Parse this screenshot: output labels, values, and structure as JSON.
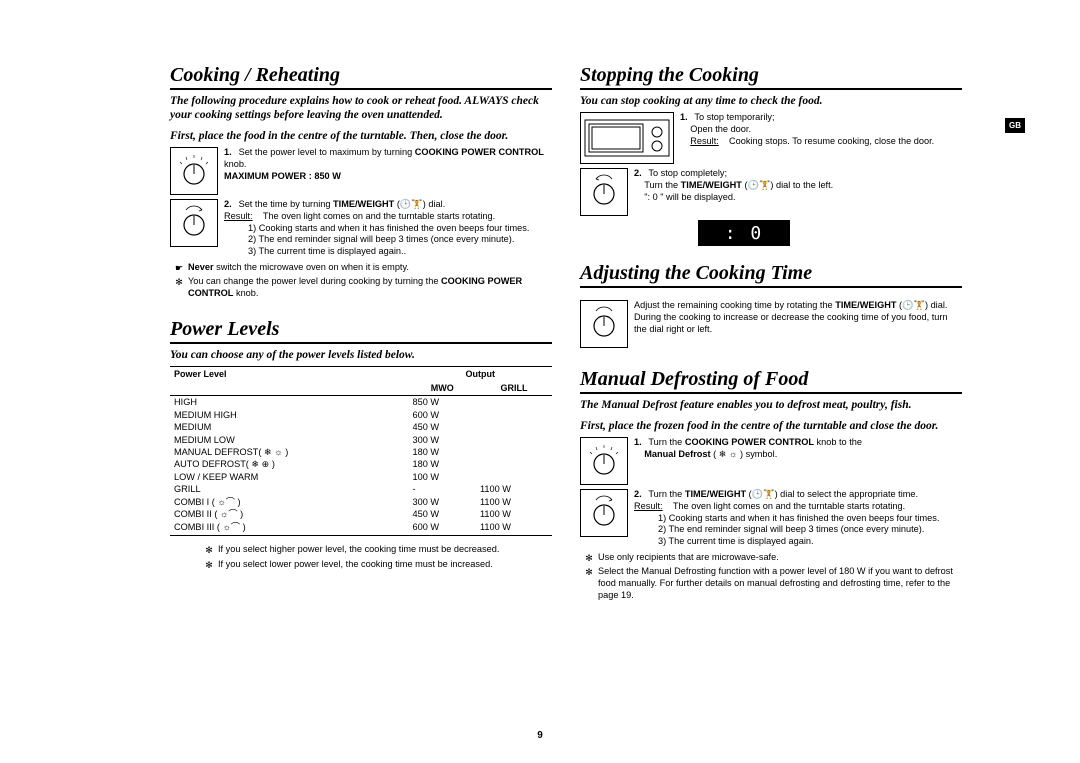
{
  "lang_tag": "GB",
  "page_number": "9",
  "left": {
    "s1": {
      "heading": "Cooking / Reheating",
      "intro1": "The following procedure explains how to cook or reheat food. ALWAYS check your cooking settings before leaving the oven unattended.",
      "intro2": "First, place the food in the centre of the turntable. Then, close the door.",
      "step1_num": "1.",
      "step1a": "Set the power level to maximum by turning ",
      "step1b": "COOKING POWER CONTROL",
      "step1c": " knob.",
      "step1d": "MAXIMUM POWER : 850 W",
      "step2_num": "2.",
      "step2a": "Set the time by turning ",
      "step2b": "TIME/WEIGHT",
      "step2c": " (🕒🏋) dial.",
      "step2_res_label": "Result:",
      "step2_res1": "The oven light comes on and the turntable starts rotating.",
      "step2_r1": "1) Cooking starts and when it has finished the oven beeps four times.",
      "step2_r2": "2) The end reminder signal will beep 3 times (once every minute).",
      "step2_r3": "3) The current time is displayed again..",
      "note1a": "Never",
      "note1b": " switch the microwave oven on when it is empty.",
      "note2a": "You can change the power level during cooking by turning the ",
      "note2b": "COOKING POWER CONTROL",
      "note2c": " knob."
    },
    "s2": {
      "heading": "Power Levels",
      "intro": "You can choose any of the power levels listed below.",
      "th_level": "Power Level",
      "th_output": "Output",
      "th_mwo": "MWO",
      "th_grill": "GRILL",
      "rows": [
        {
          "l": "HIGH",
          "m": "850 W",
          "g": ""
        },
        {
          "l": "MEDIUM HIGH",
          "m": "600 W",
          "g": ""
        },
        {
          "l": "MEDIUM",
          "m": "450 W",
          "g": ""
        },
        {
          "l": "MEDIUM LOW",
          "m": "300 W",
          "g": ""
        },
        {
          "l": "MANUAL DEFROST( ❄ ☼ )",
          "m": "180 W",
          "g": ""
        },
        {
          "l": "AUTO DEFROST( ❄ ⊕ )",
          "m": "180 W",
          "g": ""
        },
        {
          "l": "LOW / KEEP WARM",
          "m": "100 W",
          "g": ""
        },
        {
          "l": "GRILL",
          "m": "-",
          "g": "1100 W"
        },
        {
          "l": "COMBI I  ( ☼⌒ )",
          "m": "300 W",
          "g": "1100 W"
        },
        {
          "l": "COMBI II  ( ☼⌒ )",
          "m": "450 W",
          "g": "1100 W"
        },
        {
          "l": "COMBI III ( ☼⌒ )",
          "m": "600 W",
          "g": "1100 W"
        }
      ],
      "note1": "If you select higher power level, the cooking time must be decreased.",
      "note2": "If you select lower power level, the cooking time must be increased."
    }
  },
  "right": {
    "s1": {
      "heading": "Stopping the Cooking",
      "intro": "You can stop cooking at any time to check the food.",
      "step1_num": "1.",
      "step1a": "To stop temporarily;",
      "step1b": "Open the door.",
      "step1_res_label": "Result:",
      "step1_res": "Cooking stops. To resume cooking, close the door.",
      "step2_num": "2.",
      "step2a": "To stop completely;",
      "step2b": "Turn the ",
      "step2c": "TIME/WEIGHT",
      "step2d": " (🕒🏋) dial to the left.",
      "step2e": "\": 0 \" will be displayed.",
      "display": ":  0"
    },
    "s2": {
      "heading": "Adjusting the Cooking Time",
      "p1a": "Adjust the remaining cooking time by rotating the ",
      "p1b": "TIME/WEIGHT",
      "p1c": " (🕒🏋) dial.",
      "p2": "During the cooking to increase or decrease the cooking time of you food, turn the dial right or left."
    },
    "s3": {
      "heading": "Manual Defrosting of Food",
      "intro1": "The Manual Defrost feature enables you to defrost meat, poultry, fish.",
      "intro2": "First, place the frozen food in the centre of the turntable and close the door.",
      "step1_num": "1.",
      "step1a": "Turn the ",
      "step1b": "COOKING POWER CONTROL",
      "step1c": " knob to the ",
      "step1d": "Manual Defrost",
      "step1e": " ( ❄ ☼ ) symbol.",
      "step2_num": "2.",
      "step2a": "Turn the ",
      "step2b": "TIME/WEIGHT",
      "step2c": " (🕒🏋) dial to select the appropriate time.",
      "step2_res_label": "Result:",
      "step2_res1": "The oven light comes on and the turntable starts rotating.",
      "step2_r1": "1) Cooking starts and when it has finished the oven beeps four times.",
      "step2_r2": "2) The end reminder signal will beep 3 times (once every minute).",
      "step2_r3": "3) The current time is displayed again.",
      "note1": "Use only recipients that are microwave-safe.",
      "note2": "Select the Manual Defrosting function with a power level of 180 W if you want to defrost food manually. For further details on manual defrosting and defrosting time, refer to the page 19."
    }
  }
}
